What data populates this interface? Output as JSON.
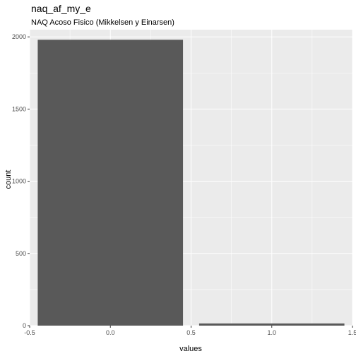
{
  "chart_data": {
    "type": "bar",
    "title": "naq_af_my_e",
    "subtitle": "NAQ Acoso Fisico (Mikkelsen y Einarsen)",
    "xlabel": "values",
    "ylabel": "count",
    "x": [
      0,
      1
    ],
    "values": [
      1980,
      15
    ],
    "bar_width": 0.9,
    "xlim": [
      -0.5,
      1.5
    ],
    "ylim": [
      0,
      2050
    ],
    "x_ticks": [
      -0.5,
      0.0,
      0.5,
      1.0,
      1.5
    ],
    "x_tick_labels": [
      "-0.5",
      "0.0",
      "0.5",
      "1.0",
      "1.5"
    ],
    "y_ticks": [
      0,
      500,
      1000,
      1500,
      2000
    ],
    "y_tick_labels": [
      "0",
      "500",
      "1000",
      "1500",
      "2000"
    ],
    "grid": true,
    "colors": {
      "panel": "#ebebeb",
      "grid_major": "#ffffff",
      "bar": "#595959"
    }
  }
}
